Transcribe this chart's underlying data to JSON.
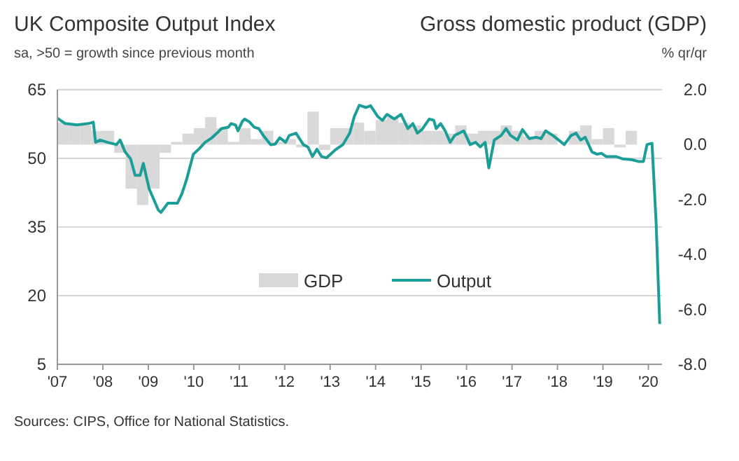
{
  "chart_data": {
    "type": "line",
    "title": "UK Composite Output Index",
    "subtitle": "sa, >50 = growth since previous month",
    "y2label": "Gross domestic product (GDP)",
    "annotations": [
      "% qr/qr",
      "Sources: CIPS, Office for National Statistics."
    ],
    "xlim": [
      2007,
      2020.3
    ],
    "xticks": [
      {
        "value": 2007,
        "label": "'07"
      },
      {
        "value": 2008,
        "label": "'08"
      },
      {
        "value": 2009,
        "label": "'09"
      },
      {
        "value": 2010,
        "label": "'10"
      },
      {
        "value": 2011,
        "label": "'11"
      },
      {
        "value": 2012,
        "label": "'12"
      },
      {
        "value": 2013,
        "label": "'13"
      },
      {
        "value": 2014,
        "label": "'14"
      },
      {
        "value": 2015,
        "label": "'15"
      },
      {
        "value": 2016,
        "label": "'16"
      },
      {
        "value": 2017,
        "label": "'17"
      },
      {
        "value": 2018,
        "label": "'18"
      },
      {
        "value": 2019,
        "label": "'19"
      },
      {
        "value": 2020,
        "label": "'20"
      }
    ],
    "ylim": [
      5,
      65
    ],
    "yticks": [
      65,
      50,
      35,
      20,
      5
    ],
    "y2lim": [
      -8,
      2
    ],
    "y2ticks": [
      {
        "value": 2,
        "label": "2.0"
      },
      {
        "value": 0,
        "label": "0.0"
      },
      {
        "value": -2,
        "label": "-2.0"
      },
      {
        "value": -4,
        "label": "-4.0"
      },
      {
        "value": -6,
        "label": "-6.0"
      },
      {
        "value": -8,
        "label": "-8.0"
      }
    ],
    "grid": "y",
    "legend": "bottom",
    "marker": "none",
    "line_style": "solid",
    "series": [
      {
        "name": "GDP",
        "type": "bar",
        "axis": "y2",
        "color": "#d9d9d9",
        "x": [
          2007.125,
          2007.375,
          2007.625,
          2007.875,
          2008.125,
          2008.375,
          2008.625,
          2008.875,
          2009.125,
          2009.375,
          2009.625,
          2009.875,
          2010.125,
          2010.375,
          2010.625,
          2010.875,
          2011.125,
          2011.375,
          2011.625,
          2011.875,
          2012.125,
          2012.375,
          2012.625,
          2012.875,
          2013.125,
          2013.375,
          2013.625,
          2013.875,
          2014.125,
          2014.375,
          2014.625,
          2014.875,
          2015.125,
          2015.375,
          2015.625,
          2015.875,
          2016.125,
          2016.375,
          2016.625,
          2016.875,
          2017.125,
          2017.375,
          2017.625,
          2017.875,
          2018.125,
          2018.375,
          2018.625,
          2018.875,
          2019.125,
          2019.375,
          2019.625,
          2019.875
        ],
        "values": [
          0.8,
          0.7,
          0.7,
          0.5,
          0.5,
          -0.3,
          -1.6,
          -2.2,
          -1.6,
          -0.3,
          0.1,
          0.4,
          0.6,
          1.0,
          0.6,
          0.1,
          0.6,
          0.2,
          0.5,
          0.1,
          0.2,
          -0.1,
          1.2,
          -0.2,
          0.6,
          0.6,
          0.8,
          0.5,
          0.9,
          1.0,
          0.8,
          0.7,
          0.5,
          0.5,
          0.4,
          0.7,
          0.4,
          0.5,
          0.5,
          0.7,
          0.5,
          0.3,
          0.5,
          0.4,
          null,
          0.5,
          0.7,
          0.2,
          0.6,
          -0.1,
          0.5,
          0.0
        ]
      },
      {
        "name": "Output",
        "type": "line",
        "color": "#1a9e97",
        "x": [
          2007.0,
          2007.17,
          2007.43,
          2007.69,
          2007.79,
          2007.84,
          2007.94,
          2008.1,
          2008.3,
          2008.38,
          2008.49,
          2008.61,
          2008.71,
          2008.82,
          2008.89,
          2009.02,
          2009.22,
          2009.28,
          2009.43,
          2009.64,
          2009.74,
          2009.84,
          2009.99,
          2010.1,
          2010.25,
          2010.4,
          2010.51,
          2010.61,
          2010.76,
          2010.82,
          2010.92,
          2010.97,
          2011.07,
          2011.12,
          2011.23,
          2011.33,
          2011.43,
          2011.53,
          2011.69,
          2011.79,
          2011.89,
          2012.02,
          2012.1,
          2012.25,
          2012.41,
          2012.51,
          2012.61,
          2012.71,
          2012.81,
          2012.92,
          2013.02,
          2013.12,
          2013.28,
          2013.43,
          2013.53,
          2013.64,
          2013.79,
          2013.89,
          2014.05,
          2014.15,
          2014.25,
          2014.41,
          2014.56,
          2014.71,
          2014.82,
          2014.92,
          2015.02,
          2015.18,
          2015.28,
          2015.33,
          2015.43,
          2015.53,
          2015.64,
          2015.74,
          2015.84,
          2015.94,
          2016.08,
          2016.2,
          2016.3,
          2016.41,
          2016.49,
          2016.61,
          2016.76,
          2016.87,
          2016.97,
          2017.12,
          2017.23,
          2017.38,
          2017.53,
          2017.64,
          2017.74,
          2017.9,
          2018.15,
          2018.3,
          2018.41,
          2018.51,
          2018.61,
          2018.76,
          2018.87,
          2018.97,
          2019.07,
          2019.28,
          2019.43,
          2019.64,
          2019.79,
          2019.89,
          2019.97,
          2020.08,
          2020.17,
          2020.25
        ],
        "values": [
          58.8,
          57.6,
          57.3,
          57.6,
          57.9,
          53.5,
          54.0,
          53.5,
          53.0,
          54.0,
          51.4,
          49.9,
          46.3,
          46.3,
          48.9,
          43.3,
          38.7,
          38.2,
          40.2,
          40.2,
          42.3,
          45.3,
          50.9,
          51.9,
          53.5,
          54.5,
          55.5,
          56.5,
          56.8,
          57.6,
          57.3,
          56.0,
          58.1,
          58.6,
          57.9,
          56.8,
          56.5,
          55.0,
          53.0,
          53.1,
          54.5,
          53.5,
          55.0,
          55.5,
          53.0,
          52.5,
          50.4,
          52.0,
          50.4,
          50.1,
          51.0,
          51.9,
          53.0,
          55.5,
          59.1,
          61.6,
          61.1,
          61.5,
          59.1,
          58.3,
          59.6,
          58.6,
          59.6,
          56.5,
          57.6,
          55.5,
          56.3,
          58.6,
          58.3,
          56.5,
          57.6,
          56.0,
          53.5,
          55.0,
          55.5,
          56.0,
          53.0,
          53.5,
          52.5,
          53.5,
          47.9,
          54.0,
          55.0,
          56.5,
          55.0,
          54.0,
          56.3,
          54.3,
          54.6,
          54.3,
          56.0,
          55.0,
          53.0,
          55.0,
          55.5,
          54.0,
          54.6,
          51.4,
          50.9,
          51.1,
          50.4,
          50.4,
          49.9,
          49.7,
          49.3,
          49.3,
          53.0,
          53.3,
          36.0,
          13.8
        ]
      }
    ]
  }
}
